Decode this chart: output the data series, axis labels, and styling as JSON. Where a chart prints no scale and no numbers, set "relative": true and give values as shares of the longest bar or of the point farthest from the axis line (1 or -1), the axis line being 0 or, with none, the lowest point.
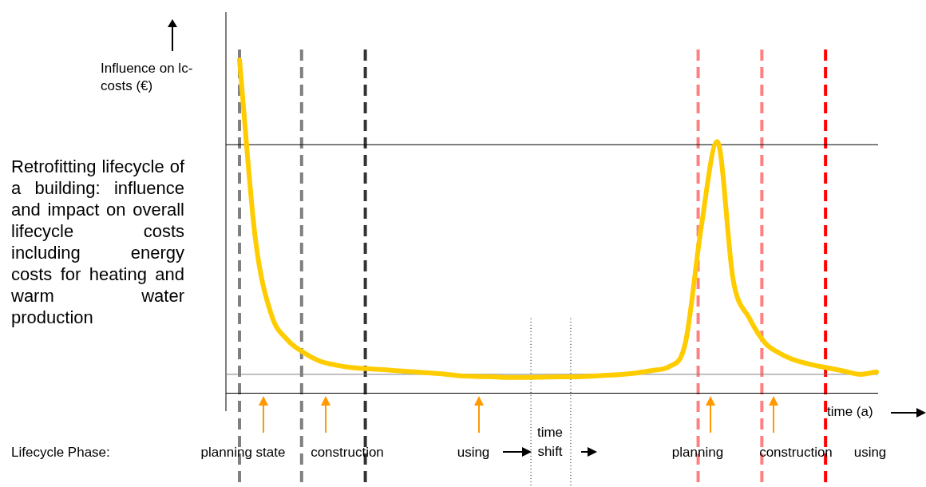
{
  "chart_data": {
    "type": "line",
    "relative": true,
    "title": "Retrofitting lifecycle of a building: influence and impact on overall lifecycle costs including energy costs for heating and warm water production",
    "ylabel": "Influence on lc- costs (€)",
    "xlabel": "time (a)",
    "categories": [
      null,
      null,
      null,
      null,
      null,
      null,
      null,
      null,
      null,
      null,
      null,
      null,
      null,
      null,
      null,
      null,
      null,
      null,
      null,
      null,
      null,
      null,
      null,
      null,
      null,
      null,
      null,
      null,
      null,
      null,
      null,
      null,
      null,
      null,
      null,
      null,
      null,
      null,
      null,
      null,
      null
    ],
    "tick_labels": false,
    "legend": false,
    "marker": "none",
    "line_style": "solid",
    "series": [
      {
        "color": "#ffcc00",
        "values": [
          1.0,
          0.43,
          0.19,
          0.11,
          0.07,
          0.043,
          0.03,
          0.022,
          0.018,
          0.015,
          0.011,
          0.008,
          0.004,
          0,
          -0.005,
          -0.007,
          -0.008,
          -0.01,
          -0.01,
          -0.009,
          -0.008,
          -0.008,
          -0.006,
          -0.003,
          0,
          0.005,
          0.013,
          0.025,
          0.1,
          0.47,
          0.74,
          0.3,
          0.18,
          0.1,
          0.065,
          0.043,
          0.03,
          0.02,
          0.01,
          0,
          0.008
        ]
      }
    ],
    "ref_lines": [
      {
        "axis": "y",
        "value": 0.73,
        "color": "#000000",
        "line_style": "solid"
      },
      {
        "axis": "y",
        "value": 0,
        "color": "#808080",
        "line_style": "solid"
      },
      {
        "axis": "y",
        "value": -0.06,
        "color": "#000000",
        "line_style": "solid"
      }
    ],
    "annotations": [
      "Lifecycle Phase:",
      "planning state",
      "construction",
      "using",
      "time shift",
      "planning",
      "construction",
      "using"
    ]
  }
}
